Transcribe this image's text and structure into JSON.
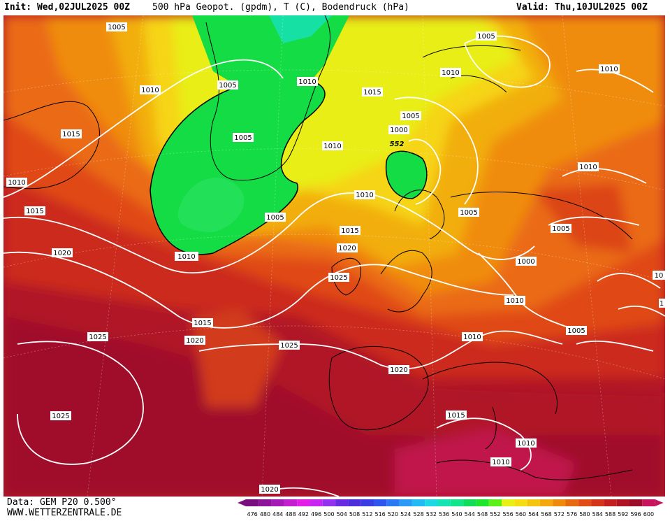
{
  "header": {
    "init": "Init: Wed,02JUL2025 00Z",
    "title": "500 hPa Geopot. (gpdm), T (C), Bodendruck (hPa)",
    "valid": "Valid: Thu,10JUL2025 00Z"
  },
  "footer": {
    "data": "Data: GEM P20 0.500°",
    "site": "WWW.WETTERZENTRALE.DE"
  },
  "legend": {
    "values": [
      "476",
      "480",
      "484",
      "488",
      "492",
      "496",
      "500",
      "504",
      "508",
      "512",
      "516",
      "520",
      "524",
      "528",
      "532",
      "536",
      "540",
      "544",
      "548",
      "552",
      "556",
      "560",
      "564",
      "568",
      "572",
      "576",
      "580",
      "584",
      "588",
      "592",
      "596",
      "600"
    ],
    "colors": [
      "#7a0e7e",
      "#8d1399",
      "#a51ab5",
      "#c41fcf",
      "#e21ee6",
      "#c826f0",
      "#9233f0",
      "#6a2be0",
      "#4c2ddc",
      "#3a3ce4",
      "#2e56ec",
      "#2a78f2",
      "#2a9af4",
      "#22baf2",
      "#1cd8e4",
      "#14e4b4",
      "#14e48a",
      "#12dc5c",
      "#1ee62e",
      "#5cf018",
      "#e8f018",
      "#f6dc12",
      "#f4c410",
      "#f2a80e",
      "#ee8a0e",
      "#e86a10",
      "#e04e16",
      "#d4341a",
      "#c41e1e",
      "#ae1424",
      "#9a0e2a",
      "#c8145e"
    ]
  },
  "map": {
    "pressure_labels": [
      {
        "text": "1005"
      },
      {
        "text": "1010"
      },
      {
        "text": "1015"
      },
      {
        "text": "1010"
      },
      {
        "text": "1015"
      },
      {
        "text": "1020"
      },
      {
        "text": "1005"
      },
      {
        "text": "1005"
      },
      {
        "text": "1010"
      },
      {
        "text": "1005"
      },
      {
        "text": "1010"
      },
      {
        "text": "1015"
      },
      {
        "text": "1005"
      },
      {
        "text": "1000"
      },
      {
        "text": "552"
      },
      {
        "text": "1010"
      },
      {
        "text": "1010"
      },
      {
        "text": "1005"
      },
      {
        "text": "1010"
      },
      {
        "text": "1005"
      },
      {
        "text": "1010"
      },
      {
        "text": "1015"
      },
      {
        "text": "1020"
      },
      {
        "text": "1025"
      },
      {
        "text": "1010"
      },
      {
        "text": "1000"
      },
      {
        "text": "1010"
      },
      {
        "text": "1005"
      },
      {
        "text": "1005"
      },
      {
        "text": "1015"
      },
      {
        "text": "1020"
      },
      {
        "text": "1025"
      },
      {
        "text": "1020"
      },
      {
        "text": "1025"
      },
      {
        "text": "1025"
      },
      {
        "text": "1015"
      },
      {
        "text": "1010"
      },
      {
        "text": "1010"
      },
      {
        "text": "1020"
      },
      {
        "text": "1010"
      },
      {
        "text": "10"
      },
      {
        "text": "1"
      }
    ]
  }
}
